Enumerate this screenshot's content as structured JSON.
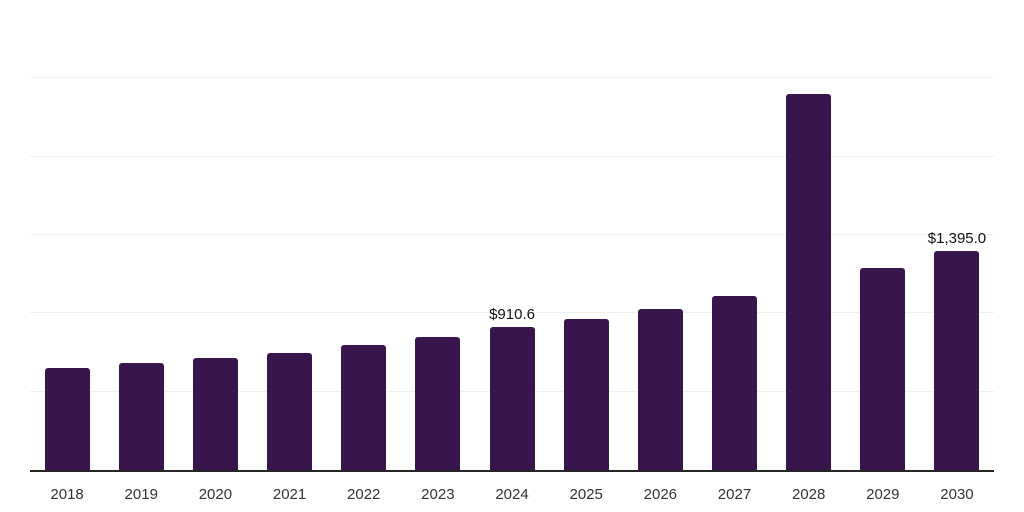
{
  "chart_data": {
    "type": "bar",
    "title": "",
    "xlabel": "",
    "ylabel": "",
    "categories": [
      "2018",
      "2019",
      "2020",
      "2021",
      "2022",
      "2023",
      "2024",
      "2025",
      "2026",
      "2027",
      "2028",
      "2029",
      "2030"
    ],
    "values": [
      650,
      680,
      715,
      750,
      800,
      850,
      910.6,
      965,
      1030,
      1110,
      2400,
      1290,
      1395.0
    ],
    "data_labels": {
      "2024": "$910.6",
      "2030": "$1,395.0"
    },
    "ylim": [
      0,
      3000
    ],
    "grid": true,
    "grid_step": 500,
    "legend": false,
    "legend_position": "none"
  },
  "colors": {
    "background": "#ffffff",
    "bar": "#38154d",
    "axis_line": "#262626",
    "gridline": "#efefef",
    "tick_label": "#333333",
    "data_label": "#111111"
  }
}
